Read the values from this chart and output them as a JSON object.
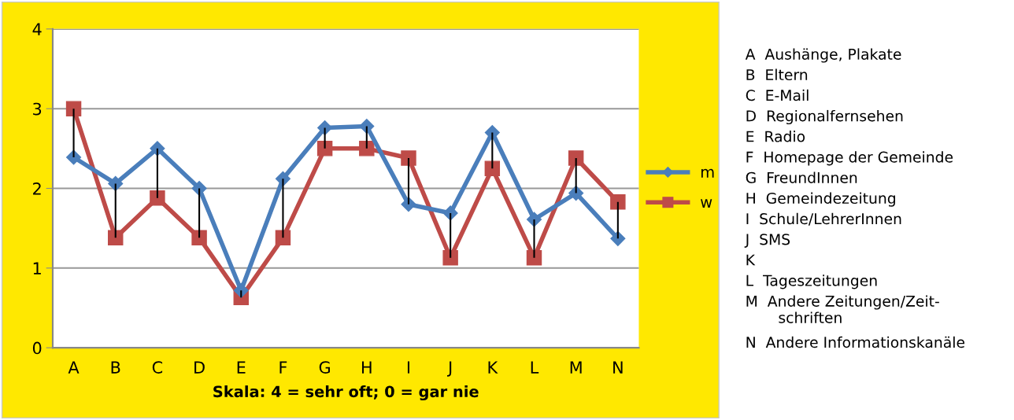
{
  "chart_data": {
    "type": "line",
    "xlabel": "Skala: 4 = sehr oft; 0 = gar nie",
    "categories": [
      "A",
      "B",
      "C",
      "D",
      "E",
      "F",
      "G",
      "H",
      "I",
      "J",
      "K",
      "L",
      "M",
      "N"
    ],
    "series": [
      {
        "name": "m",
        "color": "#4a7ebb",
        "marker": "diamond",
        "values": [
          2.39,
          2.06,
          2.5,
          2.0,
          0.72,
          2.12,
          2.76,
          2.78,
          1.8,
          1.69,
          2.7,
          1.61,
          1.94,
          1.37
        ],
        "errors": [
          [
            2.39,
            3.0
          ],
          [
            1.38,
            2.06
          ],
          [
            1.88,
            2.5
          ],
          [
            1.38,
            2.0
          ],
          [
            0.63,
            0.72
          ],
          [
            1.38,
            2.12
          ],
          [
            2.5,
            2.76
          ],
          [
            2.5,
            2.78
          ],
          [
            1.8,
            2.38
          ],
          [
            1.13,
            1.69
          ],
          [
            2.25,
            2.7
          ],
          [
            1.13,
            1.61
          ],
          [
            1.94,
            2.38
          ],
          [
            1.37,
            1.83
          ]
        ]
      },
      {
        "name": "w",
        "color": "#be4b48",
        "marker": "square",
        "values": [
          3.0,
          1.38,
          1.88,
          1.38,
          0.63,
          1.38,
          2.5,
          2.5,
          2.38,
          1.13,
          2.25,
          1.13,
          2.38,
          1.83
        ]
      }
    ],
    "ylim": [
      0,
      4
    ],
    "yticks": [
      0,
      1,
      2,
      3,
      4
    ],
    "grid": "y",
    "legend": "right",
    "annotations": [
      "A  Aushänge, Plakate",
      "B  Eltern",
      "C  E-Mail",
      "D  Regionalfernsehen",
      "E  Radio",
      "F  Homepage der Gemeinde",
      "G  FreundInnen",
      "H  Gemeindezeitung",
      "I  Schule/LehrerInnen",
      "J  SMS",
      "K",
      "L  Tageszeitungen",
      "M  Andere Zeitungen/Zeit-\n       schriften",
      "N  Andere Informationskanäle"
    ]
  }
}
